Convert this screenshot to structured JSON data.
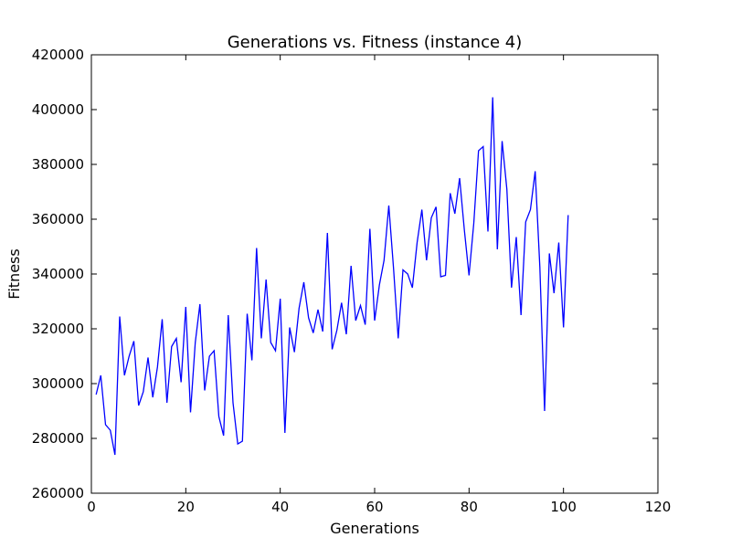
{
  "chart_data": {
    "type": "line",
    "title": "Generations vs. Fitness (instance 4)",
    "xlabel": "Generations",
    "ylabel": "Fitness",
    "xlim": [
      0,
      120
    ],
    "ylim": [
      260000,
      420000
    ],
    "xticks": [
      0,
      20,
      40,
      60,
      80,
      100,
      120
    ],
    "yticks": [
      260000,
      280000,
      300000,
      320000,
      340000,
      360000,
      380000,
      400000,
      420000
    ],
    "grid": false,
    "legend": "none",
    "line_color": "#0000ff",
    "series": [
      {
        "x": [
          1,
          2,
          3,
          4,
          5,
          6,
          7,
          8,
          9,
          10,
          11,
          12,
          13,
          14,
          15,
          16,
          17,
          18,
          19,
          20,
          21,
          22,
          23,
          24,
          25,
          26,
          27,
          28,
          29,
          30,
          31,
          32,
          33,
          34,
          35,
          36,
          37,
          38,
          39,
          40,
          41,
          42,
          43,
          44,
          45,
          46,
          47,
          48,
          49,
          50,
          51,
          52,
          53,
          54,
          55,
          56,
          57,
          58,
          59,
          60,
          61,
          62,
          63,
          64,
          65,
          66,
          67,
          68,
          69,
          70,
          71,
          72,
          73,
          74,
          75,
          76,
          77,
          78,
          79,
          80,
          81,
          82,
          83,
          84,
          85,
          86,
          87,
          88,
          89,
          90,
          91,
          92,
          93,
          94,
          95,
          96,
          97,
          98,
          99,
          100,
          101
        ],
        "values": [
          296000,
          303000,
          285000,
          283000,
          274000,
          324500,
          303000,
          310000,
          315500,
          292000,
          297000,
          309500,
          295000,
          306000,
          323500,
          293000,
          313500,
          316500,
          300500,
          328000,
          289500,
          315000,
          329000,
          297500,
          310000,
          312000,
          288000,
          281000,
          325000,
          293000,
          278000,
          279000,
          325500,
          308500,
          349500,
          316500,
          338000,
          315000,
          312000,
          331000,
          282000,
          320500,
          311500,
          327500,
          337000,
          324000,
          318500,
          327000,
          319000,
          355000,
          312500,
          319500,
          329500,
          318000,
          343000,
          323000,
          328500,
          321500,
          356500,
          323000,
          336000,
          345000,
          365000,
          342000,
          316500,
          341500,
          340000,
          335000,
          351500,
          363500,
          345000,
          360500,
          364500,
          339000,
          339500,
          369500,
          362000,
          375000,
          356000,
          339500,
          358500,
          385000,
          386500,
          355500,
          404500,
          349000,
          388500,
          371000,
          335000,
          353500,
          325000,
          359000,
          363500,
          377500,
          342500,
          290000,
          347500,
          333000,
          351500,
          320500,
          361500
        ]
      }
    ]
  }
}
